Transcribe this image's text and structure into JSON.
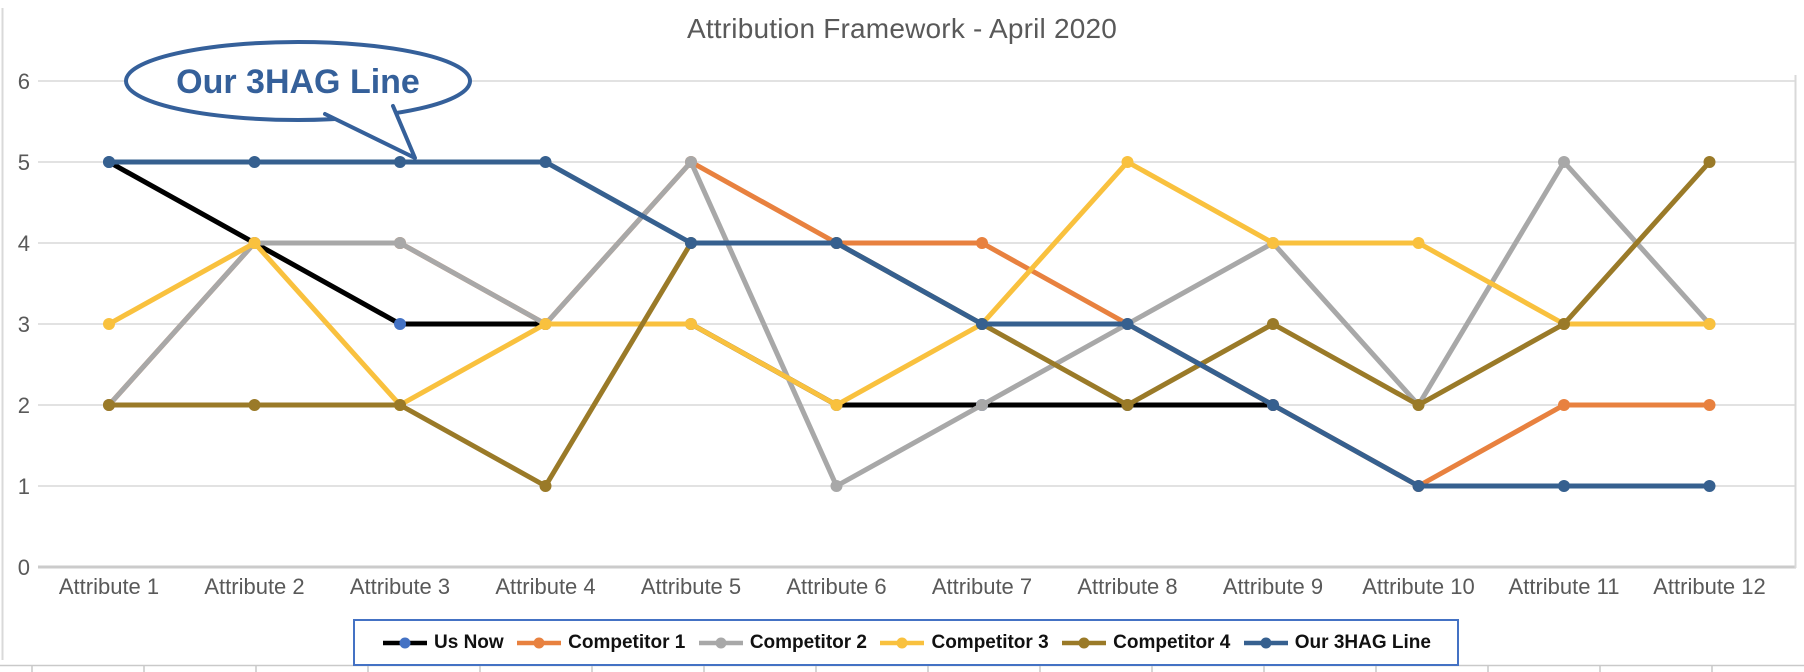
{
  "chart_data": {
    "type": "line",
    "title": "Attribution Framework - April 2020",
    "callout": {
      "text": "Our 3HAG Line"
    },
    "categories": [
      "Attribute 1",
      "Attribute 2",
      "Attribute 3",
      "Attribute 4",
      "Attribute 5",
      "Attribute 6",
      "Attribute 7",
      "Attribute 8",
      "Attribute 9",
      "Attribute 10",
      "Attribute 11",
      "Attribute 12"
    ],
    "y_ticks": [
      0,
      1,
      2,
      3,
      4,
      5,
      6
    ],
    "ylim": [
      0,
      6
    ],
    "grid": true,
    "legend_position": "bottom",
    "legend_border_color": "#4472C4",
    "callout_color": "#35609A",
    "title_color": "#595959",
    "axis_label_color": "#595959",
    "gridline_color": "#D9D9D9",
    "series": [
      {
        "name": "Us Now",
        "color": "#000000",
        "marker_color": "#4472C4",
        "values": [
          5,
          4,
          3,
          3,
          3,
          2,
          2,
          2,
          2,
          null,
          null,
          null
        ]
      },
      {
        "name": "Competitor 1",
        "color": "#E8813F",
        "marker_color": "#E8813F",
        "values": [
          2,
          4,
          4,
          3,
          5,
          4,
          4,
          3,
          2,
          1,
          2,
          2
        ]
      },
      {
        "name": "Competitor 2",
        "color": "#A8A8A8",
        "marker_color": "#A8A8A8",
        "values": [
          2,
          4,
          4,
          3,
          5,
          1,
          2,
          3,
          4,
          2,
          5,
          3
        ]
      },
      {
        "name": "Competitor 3",
        "color": "#F9C13E",
        "marker_color": "#F9C13E",
        "values": [
          3,
          4,
          2,
          3,
          3,
          2,
          3,
          5,
          4,
          4,
          3,
          3
        ]
      },
      {
        "name": "Competitor 4",
        "color": "#9A7A28",
        "marker_color": "#9A7A28",
        "values": [
          2,
          2,
          2,
          1,
          4,
          4,
          3,
          2,
          3,
          2,
          3,
          5
        ]
      },
      {
        "name": "Our 3HAG Line",
        "color": "#36608F",
        "marker_color": "#36608F",
        "values": [
          5,
          5,
          5,
          5,
          4,
          4,
          3,
          3,
          2,
          1,
          1,
          1
        ]
      }
    ]
  }
}
